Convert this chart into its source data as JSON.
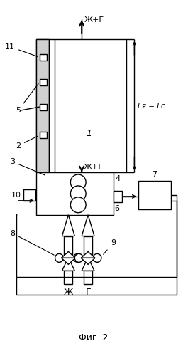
{
  "bg_color": "#ffffff",
  "lc": "#000000",
  "lw": 1.0,
  "fig_label": "Фиг. 2",
  "label_1": "1",
  "label_2": "2",
  "label_3": "3",
  "label_4": "4",
  "label_5": "5",
  "label_6": "6",
  "label_7": "7",
  "label_8": "8",
  "label_9": "9",
  "label_10": "10",
  "label_11": "11",
  "zhi": "Ж",
  "g": "Г",
  "zhig": "Ж+Г",
  "Lya": "Lя = Lс"
}
